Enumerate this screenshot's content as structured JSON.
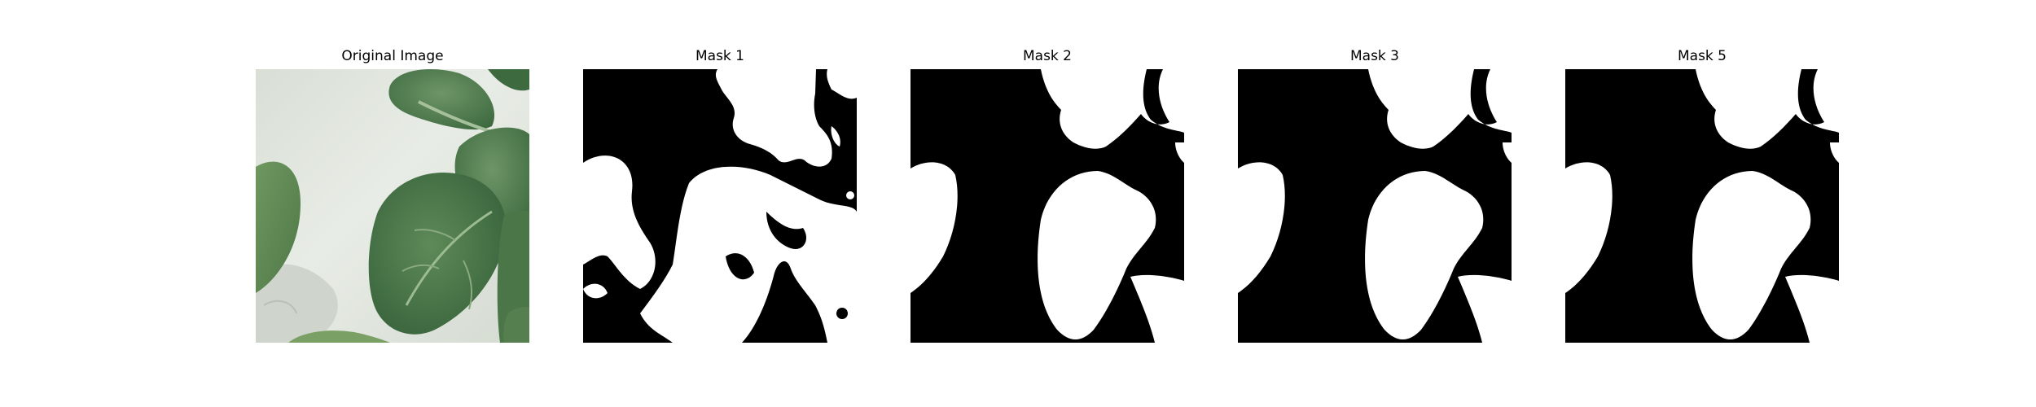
{
  "panels": [
    {
      "title": "Original Image"
    },
    {
      "title": "Mask 1"
    },
    {
      "title": "Mask 2"
    },
    {
      "title": "Mask 3"
    },
    {
      "title": "Mask 5"
    }
  ],
  "colors": {
    "background": "#ffffff",
    "mask_background": "#000000",
    "mask_foreground": "#ffffff",
    "photo_backdrop": "#dfe5dc",
    "leaf_dark": "#3f6a3f",
    "leaf_mid": "#5a8456",
    "leaf_light": "#8fb184",
    "leaf_vein": "#b6cfae"
  }
}
